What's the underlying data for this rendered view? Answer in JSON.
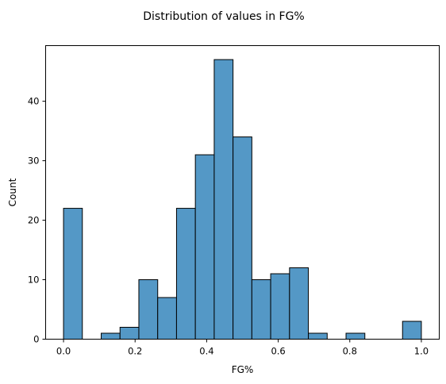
{
  "chart_data": {
    "type": "bar",
    "title": "Distribution of values in FG%",
    "xlabel": "FG%",
    "ylabel": "Count",
    "xlim": [
      -0.05,
      1.05
    ],
    "ylim": [
      0,
      49.35
    ],
    "xticks": [
      0.0,
      0.2,
      0.4,
      0.6,
      0.8,
      1.0
    ],
    "xtick_labels": [
      "0.0",
      "0.2",
      "0.4",
      "0.6",
      "0.8",
      "1.0"
    ],
    "yticks": [
      0,
      10,
      20,
      30,
      40
    ],
    "ytick_labels": [
      "0",
      "10",
      "20",
      "30",
      "40"
    ],
    "grid": false,
    "bins": [
      {
        "x0": 0.0,
        "x1": 0.0526,
        "count": 22
      },
      {
        "x0": 0.0526,
        "x1": 0.1053,
        "count": 0
      },
      {
        "x0": 0.1053,
        "x1": 0.1579,
        "count": 1
      },
      {
        "x0": 0.1579,
        "x1": 0.2105,
        "count": 2
      },
      {
        "x0": 0.2105,
        "x1": 0.2632,
        "count": 10
      },
      {
        "x0": 0.2632,
        "x1": 0.3158,
        "count": 7
      },
      {
        "x0": 0.3158,
        "x1": 0.3684,
        "count": 22
      },
      {
        "x0": 0.3684,
        "x1": 0.4211,
        "count": 31
      },
      {
        "x0": 0.4211,
        "x1": 0.4737,
        "count": 47
      },
      {
        "x0": 0.4737,
        "x1": 0.5263,
        "count": 34
      },
      {
        "x0": 0.5263,
        "x1": 0.5789,
        "count": 10
      },
      {
        "x0": 0.5789,
        "x1": 0.6316,
        "count": 11
      },
      {
        "x0": 0.6316,
        "x1": 0.6842,
        "count": 12
      },
      {
        "x0": 0.6842,
        "x1": 0.7368,
        "count": 1
      },
      {
        "x0": 0.7368,
        "x1": 0.7895,
        "count": 0
      },
      {
        "x0": 0.7895,
        "x1": 0.8421,
        "count": 1
      },
      {
        "x0": 0.8421,
        "x1": 0.8947,
        "count": 0
      },
      {
        "x0": 0.8947,
        "x1": 0.9474,
        "count": 0
      },
      {
        "x0": 0.9474,
        "x1": 1.0,
        "count": 3
      }
    ],
    "bar_color": "#5498c6",
    "edge_color": "#000000"
  }
}
